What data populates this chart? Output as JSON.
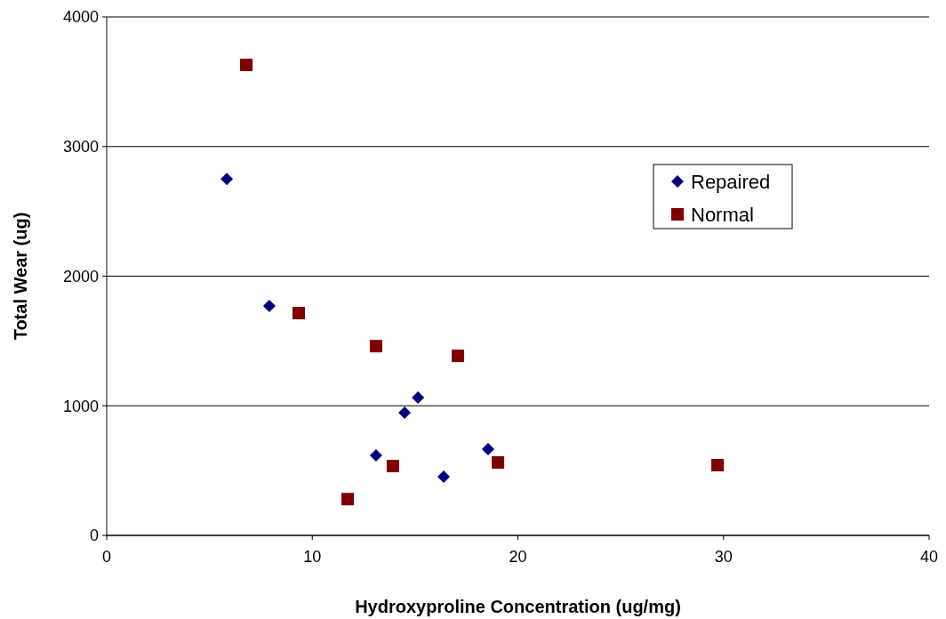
{
  "chart_data": {
    "type": "scatter",
    "xlabel": "Hydroxyproline Concentration (ug/mg)",
    "ylabel": "Total Wear (ug)",
    "xlim": [
      0,
      40
    ],
    "xticks": [
      0,
      10,
      20,
      30,
      40
    ],
    "ylim": [
      0,
      4000
    ],
    "yticks": [
      0,
      1000,
      2000,
      3000,
      4000
    ],
    "grid": "y",
    "legend": "right",
    "series": [
      {
        "name": "Repaired",
        "color": "#000080",
        "marker": "diamond",
        "x": [
          5.84,
          7.91,
          13.1,
          14.49,
          15.14,
          16.39,
          18.55
        ],
        "values": [
          2750,
          1770,
          617,
          947,
          1063,
          453,
          665
        ]
      },
      {
        "name": "Normal",
        "color": "#800000",
        "marker": "square",
        "x": [
          6.79,
          9.34,
          13.1,
          17.08,
          13.92,
          11.72,
          19.03,
          29.71
        ],
        "values": [
          3630,
          1715,
          1460,
          1385,
          535,
          280,
          563,
          542
        ]
      }
    ]
  }
}
